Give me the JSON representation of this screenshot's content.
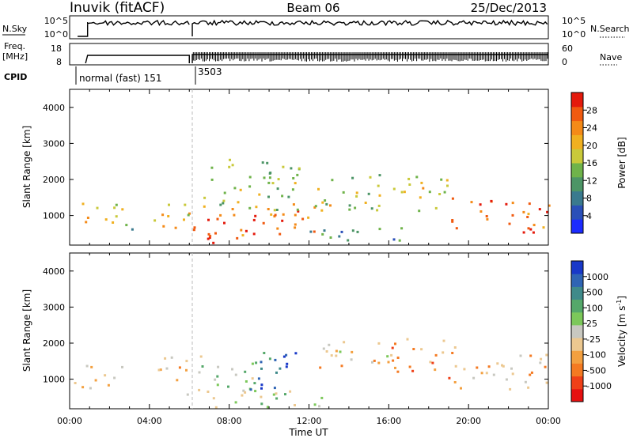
{
  "header": {
    "station": "Inuvik (fitACF)",
    "beam": "Beam 06",
    "date": "25/Dec/2013"
  },
  "panels": {
    "nsky": {
      "left_label": "N.Sky",
      "left_ticks": [
        "10^5",
        "10^0"
      ],
      "right_label": "N.Search",
      "right_ticks": [
        "10^5",
        "10^0"
      ]
    },
    "freq": {
      "left_label_1": "Freq.",
      "left_label_2": "[MHz]",
      "left_ticks": [
        "18",
        "8"
      ],
      "right_label": "Nave",
      "right_ticks": [
        "60",
        "0"
      ]
    },
    "cpid": {
      "label": "CPID",
      "segments": [
        {
          "text": "normal (fast) 151",
          "start_hour": 1.0,
          "end_hour": 6.05
        },
        {
          "text": "3503",
          "start_hour": 6.05,
          "end_hour": 24.0
        }
      ]
    }
  },
  "axes": {
    "xlabel": "Time UT",
    "x_ticks": [
      "00:00",
      "04:00",
      "08:00",
      "12:00",
      "16:00",
      "20:00",
      "00:00"
    ],
    "ylabel": "Slant Range [km]",
    "y_ticks": [
      "1000",
      "2000",
      "3000",
      "4000"
    ]
  },
  "power_colorbar": {
    "label": "Power [dB]",
    "ticks": [
      "4",
      "8",
      "12",
      "16",
      "20",
      "24",
      "28"
    ],
    "colors": [
      "#1c2bff",
      "#2a4fb8",
      "#3a7a8e",
      "#4c9566",
      "#6fb34a",
      "#c9c93a",
      "#f0b020",
      "#f48a18",
      "#f05a10",
      "#e41a0c"
    ]
  },
  "velocity_colorbar": {
    "label": "Velocity [m s",
    "label_superscript": "-1",
    "label_close": "]",
    "ticks": [
      "1000",
      "500",
      "100",
      "25",
      "-25",
      "-100",
      "-500",
      "-1000"
    ],
    "colors": [
      "#1838c8",
      "#2f64b4",
      "#3f8a8a",
      "#55a86a",
      "#7cc85a",
      "#c8c8c0",
      "#ecc890",
      "#f3a040",
      "#f47a22",
      "#ef4018",
      "#e61010"
    ]
  },
  "chart_data": {
    "type": "heatmap",
    "title": "Beam 06",
    "xlabel": "Time UT",
    "ylabel": "Slant Range [km]",
    "xlim": [
      0,
      24
    ],
    "ylim": [
      180,
      4500
    ],
    "x_tick_hours": [
      0,
      4,
      8,
      12,
      16,
      20,
      24
    ],
    "y_tick_values": [
      1000,
      2000,
      3000,
      4000
    ],
    "power_scale": [
      0,
      30
    ],
    "velocity_scale": [
      -1000,
      1000
    ],
    "data_gap_hours": [
      6.0,
      6.15
    ],
    "power_scatter_regions": [
      {
        "t": [
          0.2,
          2.6
        ],
        "r": [
          650,
          1400
        ],
        "power": 18
      },
      {
        "t": [
          2.6,
          3.2
        ],
        "r": [
          500,
          1100
        ],
        "power": 12
      },
      {
        "t": [
          4.2,
          6.0
        ],
        "r": [
          550,
          1600
        ],
        "power": 20
      },
      {
        "t": [
          6.15,
          12.5
        ],
        "r": [
          350,
          1300
        ],
        "power": 24
      },
      {
        "t": [
          6.3,
          9.0
        ],
        "r": [
          200,
          500
        ],
        "power": 28
      },
      {
        "t": [
          6.5,
          11.5
        ],
        "r": [
          1100,
          2600
        ],
        "power": 14
      },
      {
        "t": [
          12.2,
          19.0
        ],
        "r": [
          1100,
          2200
        ],
        "power": 16
      },
      {
        "t": [
          12.0,
          17.0
        ],
        "r": [
          200,
          650
        ],
        "power": 10
      },
      {
        "t": [
          19.0,
          24.0
        ],
        "r": [
          500,
          1500
        ],
        "power": 26
      }
    ],
    "velocity_scatter_regions": [
      {
        "t": [
          0.2,
          2.6
        ],
        "r": [
          650,
          1400
        ],
        "velocity": -200
      },
      {
        "t": [
          4.2,
          6.0
        ],
        "r": [
          550,
          1600
        ],
        "velocity": -300
      },
      {
        "t": [
          6.15,
          9.5
        ],
        "r": [
          600,
          1700
        ],
        "velocity": 80
      },
      {
        "t": [
          9.0,
          11.5
        ],
        "r": [
          700,
          1900
        ],
        "velocity": 700
      },
      {
        "t": [
          6.5,
          13.0
        ],
        "r": [
          200,
          700
        ],
        "velocity": 120
      },
      {
        "t": [
          12.5,
          16.5
        ],
        "r": [
          1300,
          2100
        ],
        "velocity": -200
      },
      {
        "t": [
          16.0,
          19.5
        ],
        "r": [
          1000,
          2100
        ],
        "velocity": -400
      },
      {
        "t": [
          19.0,
          24.0
        ],
        "r": [
          700,
          1700
        ],
        "velocity": -250
      }
    ]
  }
}
